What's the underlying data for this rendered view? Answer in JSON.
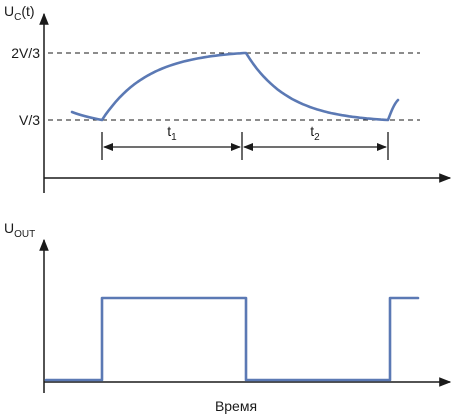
{
  "colors": {
    "waveform": "#5b79b4",
    "axes": "#1a1a1a"
  },
  "chart_data": [
    {
      "type": "line",
      "ylabel": {
        "main": "U",
        "sub": "C",
        "suffix": "(t)"
      },
      "y_ticks": [
        "2V/3",
        "V/3"
      ],
      "intervals": [
        {
          "label": "t",
          "sub": "1"
        },
        {
          "label": "t",
          "sub": "2"
        }
      ],
      "grid": false,
      "legend": "none"
    },
    {
      "type": "line",
      "ylabel": {
        "main": "U",
        "sub": "OUT"
      },
      "xlabel": "Время",
      "grid": false,
      "legend": "none"
    }
  ]
}
